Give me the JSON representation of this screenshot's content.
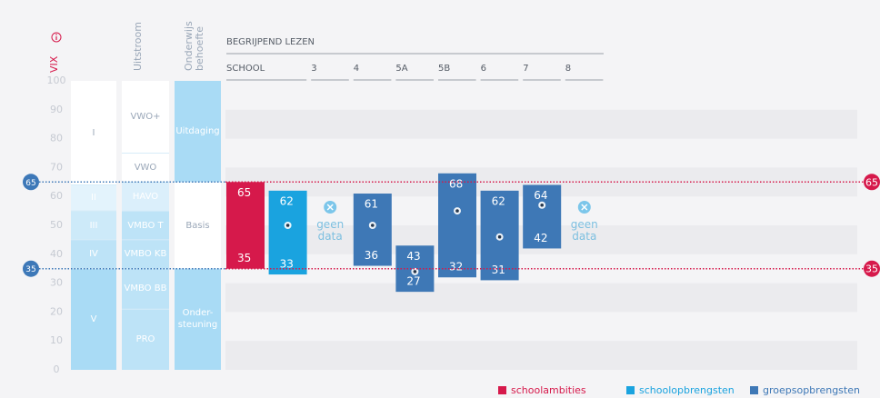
{
  "chart_data": {
    "type": "range_bar",
    "subject": "BEGRIJPEND LEZEN",
    "ylim": [
      0,
      100
    ],
    "yticks": [
      0,
      10,
      20,
      30,
      40,
      50,
      60,
      70,
      80,
      90,
      100
    ],
    "zones": [
      {
        "title": "VIX",
        "segments": [
          {
            "label": "I",
            "from": 64,
            "to": 100,
            "color": "#ffffff"
          },
          {
            "label": "II",
            "from": 55,
            "to": 64,
            "color": "#e3f3fc"
          },
          {
            "label": "III",
            "from": 45,
            "to": 55,
            "color": "#cdeaf9"
          },
          {
            "label": "IV",
            "from": 35,
            "to": 45,
            "color": "#bde3f7"
          },
          {
            "label": "V",
            "from": 0,
            "to": 35,
            "color": "#a9dbf5"
          }
        ]
      },
      {
        "title": "Uitstroom",
        "segments": [
          {
            "label": "VWO+",
            "from": 75,
            "to": 100,
            "color": "#ffffff"
          },
          {
            "label": "VWO",
            "from": 65,
            "to": 75,
            "color": "#ffffff"
          },
          {
            "label": "HAVO",
            "from": 55,
            "to": 65,
            "color": "#dbeffb"
          },
          {
            "label": "VMBO T",
            "from": 45,
            "to": 55,
            "color": "#bde3f7"
          },
          {
            "label": "VMBO KB",
            "from": 35,
            "to": 45,
            "color": "#bde3f7"
          },
          {
            "label": "VMBO BB",
            "from": 21,
            "to": 35,
            "color": "#bde3f7"
          },
          {
            "label": "PRO",
            "from": 0,
            "to": 21,
            "color": "#bde3f7"
          }
        ]
      },
      {
        "title": "Onderwijs behoefte",
        "segments": [
          {
            "label": "Uitdaging",
            "from": 65,
            "to": 100,
            "color": "#a9dbf5"
          },
          {
            "label": "Basis",
            "from": 35,
            "to": 65,
            "color": "#ffffff"
          },
          {
            "label": "Onder-steuning",
            "from": 0,
            "to": 35,
            "color": "#a9dbf5"
          }
        ]
      }
    ],
    "reference_lines": [
      65,
      35
    ],
    "reference_colors": [
      "#3d78b8",
      "#d6194b"
    ],
    "categories": [
      "SCHOOL",
      "3",
      "4",
      "5A",
      "5B",
      "6",
      "7",
      "8"
    ],
    "series": [
      {
        "name": "schoolambities",
        "color": "#d6194b",
        "low": [
          35,
          null,
          null,
          null,
          null,
          null,
          null,
          null
        ],
        "high": [
          65,
          null,
          null,
          null,
          null,
          null,
          null,
          null
        ]
      },
      {
        "name": "schoolopbrengsten",
        "color": "#1aa3df",
        "low": [
          33,
          null,
          null,
          null,
          null,
          null,
          null,
          null
        ],
        "high": [
          62,
          null,
          null,
          null,
          null,
          null,
          null,
          null
        ],
        "dot": [
          50,
          null,
          null,
          null,
          null,
          null,
          null,
          null
        ]
      },
      {
        "name": "groepsopbrengsten",
        "color": "#3e78b6",
        "low": [
          null,
          null,
          36,
          27,
          32,
          31,
          42,
          null
        ],
        "high": [
          null,
          null,
          61,
          43,
          68,
          62,
          64,
          null
        ],
        "dot": [
          null,
          null,
          50,
          34,
          55,
          46,
          57,
          null
        ]
      }
    ],
    "no_data_label": "geen data",
    "legend": "bottom-right"
  }
}
